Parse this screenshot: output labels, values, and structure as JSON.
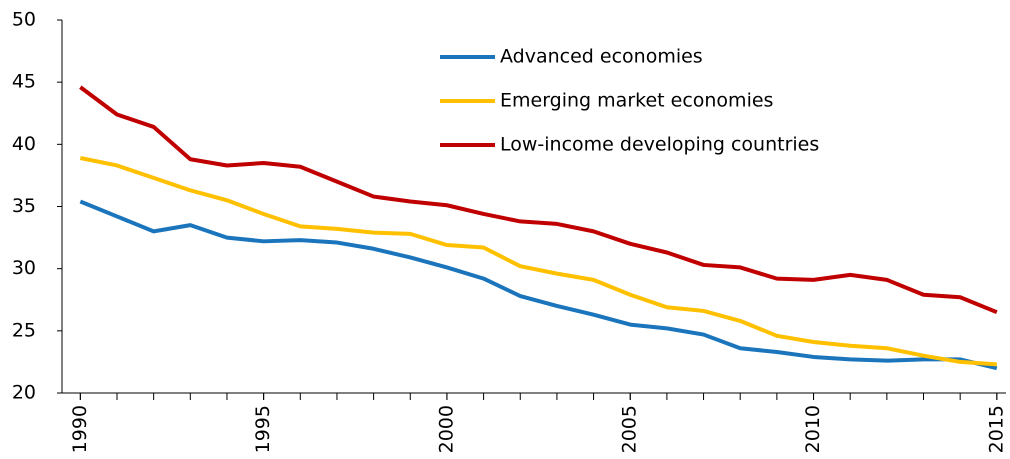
{
  "chart_data": {
    "type": "line",
    "x": [
      1990,
      1991,
      1992,
      1993,
      1994,
      1995,
      1996,
      1997,
      1998,
      1999,
      2000,
      2001,
      2002,
      2003,
      2004,
      2005,
      2006,
      2007,
      2008,
      2009,
      2010,
      2011,
      2012,
      2013,
      2014,
      2015
    ],
    "series": [
      {
        "name": "Advanced economies",
        "color": "#1b75bc",
        "values": [
          35.4,
          34.2,
          33.0,
          33.5,
          32.5,
          32.2,
          32.3,
          32.1,
          31.6,
          30.9,
          30.1,
          29.2,
          27.8,
          27.0,
          26.3,
          25.5,
          25.2,
          24.7,
          23.6,
          23.3,
          22.9,
          22.7,
          22.6,
          22.7,
          22.7,
          22.0
        ]
      },
      {
        "name": "Emerging market economies",
        "color": "#ffc000",
        "values": [
          38.9,
          38.3,
          37.3,
          36.3,
          35.5,
          34.4,
          33.4,
          33.2,
          32.9,
          32.8,
          31.9,
          31.7,
          30.2,
          29.6,
          29.1,
          27.9,
          26.9,
          26.6,
          25.8,
          24.6,
          24.1,
          23.8,
          23.6,
          23.0,
          22.5,
          22.3
        ]
      },
      {
        "name": "Low-income developing countries",
        "color": "#c00000",
        "values": [
          44.6,
          42.4,
          41.4,
          38.8,
          38.3,
          38.5,
          38.2,
          37.0,
          35.8,
          35.4,
          35.1,
          34.4,
          33.8,
          33.6,
          33.0,
          32.0,
          31.3,
          30.3,
          30.1,
          29.2,
          29.1,
          29.5,
          29.1,
          27.9,
          27.7,
          26.5
        ]
      }
    ],
    "xlim": [
      1989.5,
      2015.25
    ],
    "xticks": [
      1990,
      1995,
      2000,
      2005,
      2010,
      2015
    ],
    "ylim": [
      20,
      50
    ],
    "yticks": [
      20,
      25,
      30,
      35,
      40,
      45,
      50
    ],
    "grid": false,
    "legend": "top"
  }
}
